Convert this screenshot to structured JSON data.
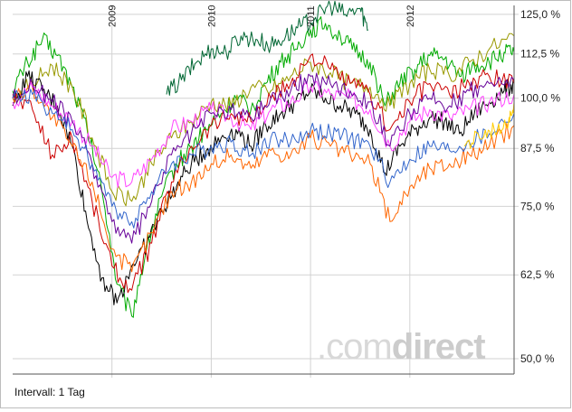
{
  "footer": {
    "interval_label": "Intervall: 1 Tag"
  },
  "watermark": {
    "dot": ".com",
    "brand": "direct"
  },
  "chart_data": {
    "type": "line",
    "y_scale": "log",
    "ylim": [
      48,
      128
    ],
    "y_ticks": [
      {
        "value": 125,
        "label": "125,0 %"
      },
      {
        "value": 112.5,
        "label": "112,5 %"
      },
      {
        "value": 100,
        "label": "100,0 %"
      },
      {
        "value": 87.5,
        "label": "87,5 %"
      },
      {
        "value": 75,
        "label": "75,0 %"
      },
      {
        "value": 62.5,
        "label": "62,5 %"
      },
      {
        "value": 50,
        "label": "50,0 %"
      }
    ],
    "xlim": [
      2008.0,
      2013.05
    ],
    "x_ticks": [
      {
        "value": 2009,
        "label": "2009"
      },
      {
        "value": 2010,
        "label": "2010"
      },
      {
        "value": 2011,
        "label": "2011"
      },
      {
        "value": 2012,
        "label": "2012"
      }
    ],
    "grid": true,
    "series": [
      {
        "color": "#00aa00",
        "x": [
          2008.0,
          2008.15,
          2008.3,
          2008.45,
          2008.6,
          2008.75,
          2008.9,
          2009.05,
          2009.2,
          2009.35,
          2009.5,
          2009.65,
          2009.8,
          2009.95,
          2010.1,
          2010.25,
          2010.4,
          2010.55,
          2010.7,
          2010.85,
          2011.0,
          2011.15,
          2011.3,
          2011.45,
          2011.6,
          2011.75,
          2011.9,
          2012.05,
          2012.2,
          2012.35,
          2012.5,
          2012.65,
          2012.8,
          2012.95,
          2013.05
        ],
        "y": [
          102,
          110,
          117,
          112,
          103,
          92,
          78,
          61,
          56,
          67,
          77,
          84,
          88,
          92,
          96,
          100,
          97,
          104,
          110,
          114,
          120,
          122,
          118,
          113,
          110,
          98,
          104,
          108,
          112,
          111,
          106,
          109,
          110,
          113,
          113
        ]
      },
      {
        "color": "#006633",
        "x": [
          2009.55,
          2009.7,
          2009.85,
          2010.0,
          2010.15,
          2010.3,
          2010.45,
          2010.6,
          2010.75,
          2010.9,
          2011.05,
          2011.2,
          2011.35,
          2011.5,
          2011.58
        ],
        "y": [
          101,
          105,
          110,
          114,
          113,
          118,
          117,
          115,
          118,
          121,
          124,
          128,
          125,
          127,
          120
        ]
      },
      {
        "color": "#999900",
        "x": [
          2008.0,
          2008.2,
          2008.4,
          2008.6,
          2008.8,
          2009.0,
          2009.2,
          2009.4,
          2009.6,
          2009.8,
          2010.0,
          2010.2,
          2010.4,
          2010.6,
          2010.8,
          2011.0,
          2011.2,
          2011.4,
          2011.6,
          2011.8,
          2012.0,
          2012.2,
          2012.4,
          2012.6,
          2012.8,
          2013.05
        ],
        "y": [
          100,
          104,
          109,
          103,
          90,
          78,
          76,
          84,
          90,
          94,
          99,
          98,
          103,
          102,
          106,
          110,
          107,
          104,
          103,
          98,
          104,
          108,
          106,
          110,
          114,
          118
        ]
      },
      {
        "color": "#000000",
        "x": [
          2008.0,
          2008.15,
          2008.3,
          2008.45,
          2008.6,
          2008.75,
          2008.9,
          2009.05,
          2009.2,
          2009.35,
          2009.5,
          2009.65,
          2009.8,
          2009.95,
          2010.1,
          2010.25,
          2010.4,
          2010.55,
          2010.7,
          2010.85,
          2011.0,
          2011.15,
          2011.3,
          2011.45,
          2011.6,
          2011.75,
          2011.9,
          2012.05,
          2012.2,
          2012.35,
          2012.5,
          2012.65,
          2012.8,
          2012.95,
          2013.05
        ],
        "y": [
          98,
          106,
          102,
          98,
          88,
          72,
          62,
          58,
          64,
          68,
          74,
          79,
          84,
          87,
          90,
          92,
          88,
          93,
          96,
          99,
          102,
          100,
          98,
          96,
          92,
          82,
          88,
          92,
          95,
          94,
          91,
          96,
          99,
          102,
          104
        ]
      },
      {
        "color": "#cc0000",
        "x": [
          2008.0,
          2008.2,
          2008.4,
          2008.6,
          2008.8,
          2009.0,
          2009.2,
          2009.4,
          2009.6,
          2009.8,
          2010.0,
          2010.2,
          2010.4,
          2010.6,
          2010.8,
          2011.0,
          2011.2,
          2011.4,
          2011.6,
          2011.8,
          2012.0,
          2012.2,
          2012.4,
          2012.6,
          2012.8,
          2013.05
        ],
        "y": [
          101,
          97,
          86,
          90,
          76,
          64,
          60,
          68,
          80,
          88,
          93,
          96,
          94,
          100,
          104,
          112,
          108,
          104,
          101,
          92,
          99,
          104,
          101,
          104,
          106,
          104
        ]
      },
      {
        "color": "#ff6600",
        "x": [
          2008.0,
          2008.2,
          2008.4,
          2008.6,
          2008.8,
          2009.0,
          2009.2,
          2009.4,
          2009.6,
          2009.8,
          2010.0,
          2010.2,
          2010.4,
          2010.6,
          2010.8,
          2011.0,
          2011.2,
          2011.4,
          2011.6,
          2011.8,
          2012.0,
          2012.2,
          2012.4,
          2012.6,
          2012.8,
          2013.05
        ],
        "y": [
          100,
          103,
          95,
          88,
          80,
          67,
          63,
          70,
          78,
          80,
          84,
          86,
          83,
          87,
          86,
          90,
          88,
          86,
          84,
          72,
          79,
          83,
          84,
          86,
          88,
          93
        ]
      },
      {
        "color": "#ff44ff",
        "x": [
          2008.0,
          2008.2,
          2008.4,
          2008.6,
          2008.8,
          2009.0,
          2009.2,
          2009.4,
          2009.6,
          2009.8,
          2010.0,
          2010.2,
          2010.4,
          2010.6,
          2010.8,
          2011.0,
          2011.2,
          2011.4,
          2011.6,
          2011.8,
          2012.0,
          2012.2,
          2012.4,
          2012.6,
          2012.8,
          2013.05
        ],
        "y": [
          99,
          103,
          98,
          94,
          88,
          81,
          80,
          85,
          92,
          94,
          97,
          95,
          92,
          97,
          99,
          103,
          101,
          100,
          97,
          88,
          94,
          97,
          95,
          97,
          99,
          101
        ]
      },
      {
        "color": "#660099",
        "x": [
          2008.0,
          2008.2,
          2008.4,
          2008.6,
          2008.8,
          2009.0,
          2009.2,
          2009.4,
          2009.6,
          2009.8,
          2010.0,
          2010.2,
          2010.4,
          2010.6,
          2010.8,
          2011.0,
          2011.2,
          2011.4,
          2011.6,
          2011.8,
          2012.0,
          2012.2,
          2012.4,
          2012.6,
          2012.8,
          2013.05
        ],
        "y": [
          100,
          104,
          99,
          94,
          84,
          72,
          68,
          76,
          86,
          91,
          96,
          97,
          95,
          100,
          102,
          106,
          104,
          102,
          99,
          88,
          96,
          100,
          98,
          102,
          104,
          105
        ]
      },
      {
        "color": "#3366cc",
        "x": [
          2008.0,
          2008.2,
          2008.4,
          2008.6,
          2008.8,
          2009.0,
          2009.2,
          2009.4,
          2009.6,
          2009.8,
          2010.0,
          2010.2,
          2010.4,
          2010.6,
          2010.8,
          2011.0,
          2011.2,
          2011.4,
          2011.6,
          2011.8,
          2012.0,
          2012.2,
          2012.4,
          2012.6,
          2012.8,
          2013.05
        ],
        "y": [
          100,
          101,
          96,
          92,
          84,
          75,
          72,
          78,
          84,
          86,
          88,
          89,
          86,
          90,
          89,
          92,
          91,
          90,
          88,
          80,
          85,
          88,
          87,
          89,
          91,
          96
        ]
      },
      {
        "color": "#ffcc00",
        "x": [
          2012.55,
          2012.7,
          2012.85,
          2013.0,
          2013.05
        ],
        "y": [
          88,
          90,
          92,
          95,
          99
        ]
      }
    ]
  }
}
